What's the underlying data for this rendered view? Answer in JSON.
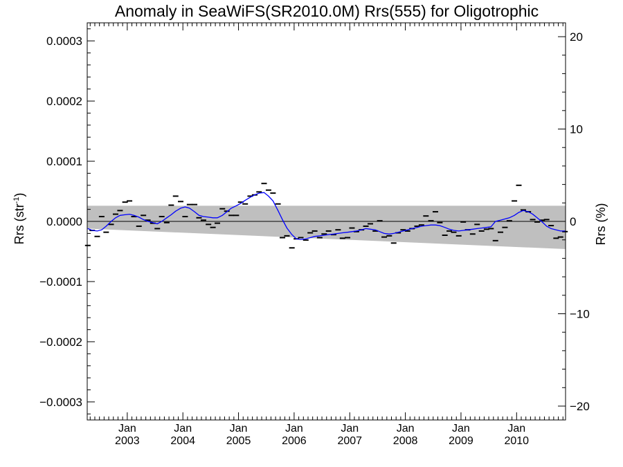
{
  "chart_data": {
    "type": "line",
    "title": "Anomaly in SeaWiFS(SR2010.0M) Rrs(555) for Oligotrophic",
    "ylabel": {
      "base": "Rrs (str",
      "sup": "-1",
      "end": ")"
    },
    "ylabel_right": "Rrs (%)",
    "xlim": [
      2002.28,
      2010.88
    ],
    "ylim": [
      -0.00033,
      0.00033
    ],
    "ylim_right": [
      -21.5,
      21.5
    ],
    "x_ticks": [
      {
        "x": 2003.0,
        "month": "Jan",
        "year": "2003"
      },
      {
        "x": 2004.0,
        "month": "Jan",
        "year": "2004"
      },
      {
        "x": 2005.0,
        "month": "Jan",
        "year": "2005"
      },
      {
        "x": 2006.0,
        "month": "Jan",
        "year": "2006"
      },
      {
        "x": 2007.0,
        "month": "Jan",
        "year": "2007"
      },
      {
        "x": 2008.0,
        "month": "Jan",
        "year": "2008"
      },
      {
        "x": 2009.0,
        "month": "Jan",
        "year": "2009"
      },
      {
        "x": 2010.0,
        "month": "Jan",
        "year": "2010"
      }
    ],
    "y_ticks": [
      {
        "v": 0.0003,
        "label": "0.0003"
      },
      {
        "v": 0.0002,
        "label": "0.0002"
      },
      {
        "v": 0.0001,
        "label": "0.0001"
      },
      {
        "v": 0.0,
        "label": "0.0000"
      },
      {
        "v": -0.0001,
        "label": "−0.0001"
      },
      {
        "v": -0.0002,
        "label": "−0.0002"
      },
      {
        "v": -0.0003,
        "label": "−0.0003"
      }
    ],
    "y_ticks_right": [
      {
        "v": 20,
        "label": "20"
      },
      {
        "v": 10,
        "label": "10"
      },
      {
        "v": 0,
        "label": "0"
      },
      {
        "v": -10,
        "label": "−10"
      },
      {
        "v": -20,
        "label": "−20"
      }
    ],
    "band": {
      "x": [
        2002.28,
        2010.88
      ],
      "upper": [
        2.6e-05,
        2.6e-05
      ],
      "lower": [
        -1.2e-05,
        -4.6e-05
      ]
    },
    "zero_line": 0.0,
    "series": [
      {
        "type": "points",
        "x": [
          2002.29,
          2002.37,
          2002.46,
          2002.54,
          2002.62,
          2002.71,
          2002.79,
          2002.87,
          2002.96,
          2003.04,
          2003.12,
          2003.21,
          2003.29,
          2003.37,
          2003.46,
          2003.54,
          2003.62,
          2003.71,
          2003.79,
          2003.87,
          2003.96,
          2004.04,
          2004.12,
          2004.21,
          2004.29,
          2004.37,
          2004.46,
          2004.54,
          2004.62,
          2004.71,
          2004.79,
          2004.87,
          2004.96,
          2005.04,
          2005.12,
          2005.21,
          2005.29,
          2005.37,
          2005.46,
          2005.54,
          2005.62,
          2005.71,
          2005.79,
          2005.87,
          2005.96,
          2006.04,
          2006.12,
          2006.21,
          2006.29,
          2006.37,
          2006.46,
          2006.54,
          2006.62,
          2006.71,
          2006.79,
          2006.87,
          2006.96,
          2007.04,
          2007.12,
          2007.21,
          2007.29,
          2007.37,
          2007.46,
          2007.54,
          2007.62,
          2007.71,
          2007.79,
          2007.87,
          2007.96,
          2008.04,
          2008.12,
          2008.21,
          2008.29,
          2008.37,
          2008.46,
          2008.54,
          2008.62,
          2008.71,
          2008.79,
          2008.87,
          2008.96,
          2009.04,
          2009.12,
          2009.21,
          2009.29,
          2009.37,
          2009.46,
          2009.54,
          2009.62,
          2009.71,
          2009.79,
          2009.87,
          2009.96,
          2010.04,
          2010.12,
          2010.21,
          2010.29,
          2010.37,
          2010.46,
          2010.54,
          2010.62,
          2010.71,
          2010.79,
          2010.87
        ],
        "y": [
          -4e-05,
          -1.5e-05,
          -2.5e-05,
          8e-06,
          -1.8e-05,
          -5e-06,
          1.2e-05,
          1.8e-05,
          3.2e-05,
          3.4e-05,
          8e-06,
          -8e-06,
          1e-05,
          2e-06,
          -3e-06,
          -1.2e-05,
          8e-06,
          -2e-06,
          2.7e-05,
          4.2e-05,
          3.3e-05,
          8e-06,
          2.8e-05,
          2.8e-05,
          6e-06,
          2e-06,
          -5e-06,
          -1e-05,
          -3e-06,
          2.1e-05,
          1.7e-05,
          1e-05,
          1e-05,
          3.2e-05,
          2.9e-05,
          4.2e-05,
          4.4e-05,
          4.9e-05,
          6.3e-05,
          5.2e-05,
          4.7e-05,
          2.9e-05,
          -2.7e-05,
          -2.4e-05,
          -4.4e-05,
          -2.9e-05,
          -2.7e-05,
          -3.1e-05,
          -1.9e-05,
          -1.6e-05,
          -2.7e-05,
          -2.1e-05,
          -1.6e-05,
          -2.2e-05,
          -1.4e-05,
          -2.8e-05,
          -2.7e-05,
          -1.1e-05,
          -1.7e-05,
          -1.4e-05,
          -8e-06,
          -4e-06,
          -1.6e-05,
          1e-06,
          -2.6e-05,
          -2.4e-05,
          -3.6e-05,
          -1.9e-05,
          -1.4e-05,
          -1.6e-05,
          -1.2e-05,
          -8e-06,
          -6e-06,
          9e-06,
          1e-06,
          1.6e-05,
          -2e-06,
          -2.3e-05,
          -1.6e-05,
          -1.8e-05,
          -2.4e-05,
          -1e-06,
          -1.4e-05,
          -2.1e-05,
          -5e-06,
          -1.6e-05,
          -1.3e-05,
          -1.2e-05,
          -3.2e-05,
          -1.8e-05,
          -1e-05,
          1e-06,
          3.4e-05,
          6e-05,
          1.9e-05,
          1.6e-05,
          3e-06,
          -1e-06,
          2e-06,
          3e-06,
          -7e-06,
          -2.8e-05,
          -2.6e-05,
          -1.7e-05
        ],
        "color": "#000000"
      },
      {
        "type": "line",
        "x": [
          2002.29,
          2002.37,
          2002.46,
          2002.54,
          2002.62,
          2002.71,
          2002.79,
          2002.87,
          2002.96,
          2003.04,
          2003.12,
          2003.21,
          2003.29,
          2003.37,
          2003.46,
          2003.54,
          2003.62,
          2003.71,
          2003.79,
          2003.87,
          2003.96,
          2004.04,
          2004.12,
          2004.21,
          2004.29,
          2004.37,
          2004.46,
          2004.54,
          2004.62,
          2004.71,
          2004.79,
          2004.87,
          2004.96,
          2005.04,
          2005.12,
          2005.21,
          2005.29,
          2005.37,
          2005.46,
          2005.54,
          2005.62,
          2005.71,
          2005.79,
          2005.87,
          2005.96,
          2006.04,
          2006.12,
          2006.21,
          2006.29,
          2006.37,
          2006.46,
          2006.54,
          2006.62,
          2006.71,
          2006.79,
          2006.87,
          2006.96,
          2007.04,
          2007.12,
          2007.21,
          2007.29,
          2007.37,
          2007.46,
          2007.54,
          2007.62,
          2007.71,
          2007.79,
          2007.87,
          2007.96,
          2008.04,
          2008.12,
          2008.21,
          2008.29,
          2008.37,
          2008.46,
          2008.54,
          2008.62,
          2008.71,
          2008.79,
          2008.87,
          2008.96,
          2009.04,
          2009.12,
          2009.21,
          2009.29,
          2009.37,
          2009.46,
          2009.54,
          2009.62,
          2009.71,
          2009.79,
          2009.87,
          2009.96,
          2010.04,
          2010.12,
          2010.21,
          2010.29,
          2010.37,
          2010.46,
          2010.54,
          2010.62,
          2010.71,
          2010.79,
          2010.87
        ],
        "y": [
          -1.2e-05,
          -1.5e-05,
          -1.6e-05,
          -1.4e-05,
          -8e-06,
          0.0,
          6e-06,
          1e-05,
          1.1e-05,
          1.2e-05,
          1e-05,
          7e-06,
          3e-06,
          0.0,
          -2e-06,
          -4e-06,
          0.0,
          6e-06,
          1.1e-05,
          1.7e-05,
          2.2e-05,
          2.4e-05,
          2.2e-05,
          1.6e-05,
          1e-05,
          8e-06,
          7e-06,
          6e-06,
          6e-06,
          1e-05,
          1.6e-05,
          2.2e-05,
          2.6e-05,
          3e-05,
          3.5e-05,
          4e-05,
          4.4e-05,
          4.7e-05,
          4.8e-05,
          4.2e-05,
          3.4e-05,
          1.8e-05,
          3e-06,
          -1.1e-05,
          -2.2e-05,
          -2.9e-05,
          -3e-05,
          -2.9e-05,
          -2.7e-05,
          -2.5e-05,
          -2.4e-05,
          -2.3e-05,
          -2.2e-05,
          -2.1e-05,
          -2e-05,
          -1.9e-05,
          -1.8e-05,
          -1.7e-05,
          -1.6e-05,
          -1.4e-05,
          -1.2e-05,
          -1.3e-05,
          -1.4e-05,
          -1.7e-05,
          -2e-05,
          -2.1e-05,
          -2e-05,
          -1.8e-05,
          -1.6e-05,
          -1.4e-05,
          -1.2e-05,
          -1e-05,
          -8e-06,
          -7e-06,
          -6e-06,
          -6e-06,
          -7e-06,
          -1e-05,
          -1.3e-05,
          -1.5e-05,
          -1.6e-05,
          -1.5e-05,
          -1.4e-05,
          -1.3e-05,
          -1.2e-05,
          -1.1e-05,
          -1e-05,
          -9e-06,
          0.0,
          2e-06,
          4e-06,
          6e-06,
          1e-05,
          1.5e-05,
          1.8e-05,
          1.6e-05,
          1.2e-05,
          6e-06,
          -1e-06,
          -8e-06,
          -1.2e-05,
          -1.4e-05,
          -1.6e-05,
          -1.6e-05
        ],
        "color": "#0000ff"
      }
    ],
    "grid": false,
    "legend": "none"
  }
}
